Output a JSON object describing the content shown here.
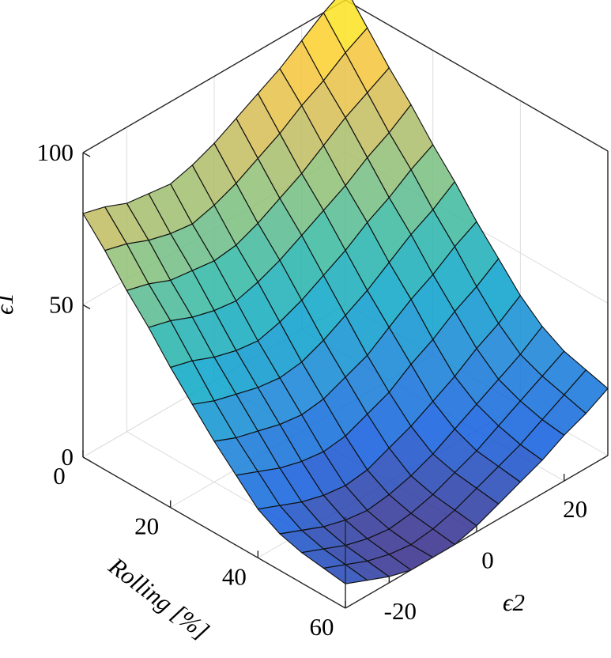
{
  "chart_data": {
    "type": "surface",
    "title": "",
    "xlabel": "Rolling [%]",
    "ylabel": "ϵ2",
    "zlabel": "ϵ1",
    "xlim": [
      0,
      60
    ],
    "ylim": [
      -30,
      30
    ],
    "zlim": [
      0,
      100
    ],
    "x_ticks": [
      "0",
      "20",
      "40",
      "60"
    ],
    "y_ticks": [
      "-20",
      "0",
      "20"
    ],
    "z_ticks": [
      "0",
      "50",
      "100"
    ],
    "grid": true,
    "colormap": "parula",
    "colormap_stops": [
      "#352a87",
      "#0f5cdd",
      "#1481d6",
      "#06a4ca",
      "#2eb7a4",
      "#87bf77",
      "#d1bb59",
      "#fec832",
      "#f9fb0e"
    ],
    "x": [
      0,
      5,
      10,
      15,
      20,
      25,
      30,
      35,
      40,
      45,
      50,
      55,
      60
    ],
    "y": [
      -30,
      -25,
      -20,
      -15,
      -10,
      -5,
      0,
      5,
      10,
      15,
      20,
      25,
      30
    ],
    "z": [
      [
        80,
        78,
        75,
        74,
        73,
        75,
        78,
        82,
        86,
        90,
        95,
        100,
        104
      ],
      [
        72,
        70,
        67,
        65,
        64,
        66,
        69,
        73,
        77,
        82,
        86,
        91,
        95
      ],
      [
        63,
        61,
        58,
        57,
        56,
        57,
        60,
        64,
        68,
        73,
        78,
        82,
        86
      ],
      [
        55,
        53,
        50,
        48,
        47,
        49,
        52,
        56,
        60,
        64,
        69,
        73,
        78
      ],
      [
        46,
        44,
        41,
        39,
        38,
        40,
        43,
        47,
        51,
        56,
        60,
        65,
        69
      ],
      [
        38,
        35,
        33,
        31,
        30,
        31,
        34,
        38,
        42,
        47,
        52,
        56,
        61
      ],
      [
        30,
        27,
        25,
        23,
        22,
        23,
        26,
        29,
        34,
        39,
        43,
        48,
        52
      ],
      [
        23,
        20,
        17,
        15,
        14,
        15,
        18,
        21,
        26,
        30,
        35,
        39,
        44
      ],
      [
        16,
        13,
        10,
        8,
        7,
        8,
        11,
        14,
        18,
        22,
        27,
        31,
        36
      ],
      [
        12,
        9,
        6,
        4,
        3,
        4,
        6,
        9,
        13,
        17,
        21,
        25,
        30
      ],
      [
        10,
        7,
        4,
        2,
        1,
        2,
        4,
        7,
        10,
        14,
        18,
        22,
        26
      ],
      [
        9,
        6,
        3,
        1,
        0,
        1,
        3,
        6,
        9,
        12,
        16,
        20,
        24
      ],
      [
        8,
        5,
        2,
        0,
        0,
        0,
        2,
        5,
        8,
        11,
        15,
        18,
        22
      ]
    ]
  }
}
